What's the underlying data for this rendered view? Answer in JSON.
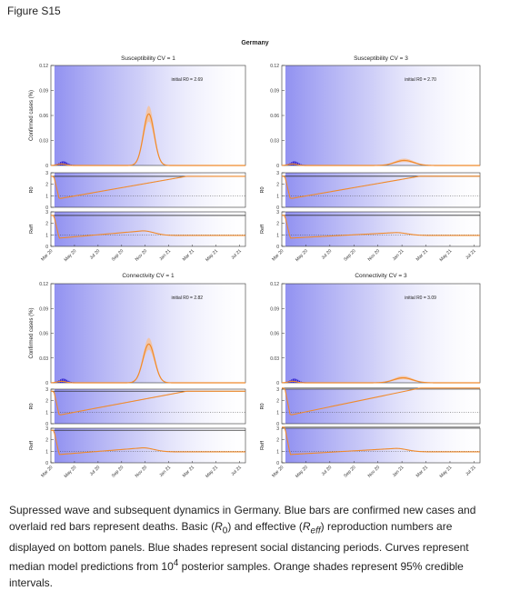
{
  "figure_label": "Figure S15",
  "suptitle": "Germany",
  "caption": {
    "part1": "Supressed wave and subsequent dynamics in Germany. Blue bars are confirmed new cases and overlaid red bars represent deaths. Basic (",
    "r0": "R",
    "r0_sub": "0",
    "part2": ") and effective (",
    "reff": "R",
    "reff_sub": "eff",
    "part3": ") reproduction numbers are displayed on bottom panels. Blue shades represent social distancing periods. Curves represent median model predictions from 10",
    "sup": "4",
    "part4": " posterior samples. Orange shades represent 95% credible intervals."
  },
  "chart_data": [
    {
      "type": "line",
      "title": "Susceptibility CV = 1",
      "annotation": "initial R0 = 2.69",
      "ylabel_cases": "Confirmed cases (%)",
      "ylabel_r0": "R0",
      "ylabel_reff": "Reff",
      "x_ticks": [
        "Mar 20",
        "May 20",
        "Jul 20",
        "Sep 20",
        "Nov 20",
        "Jan 21",
        "Mar 21",
        "May 21",
        "Jul 21"
      ],
      "cases_yticks": [
        "0.12",
        "0.09",
        "0.06",
        "0.03",
        "0"
      ],
      "cases_ylim": [
        0,
        0.12
      ],
      "r_yticks": [
        "3",
        "2",
        "1",
        "0"
      ],
      "r_ylim": [
        0,
        3
      ],
      "peak_month": 8.3,
      "peak_value": 0.062,
      "peak_width": 0.65,
      "ci_frac": 0.15,
      "r0_start": 0.75,
      "r0_end": 2.69,
      "reff_bump": 1.35,
      "reff_bump_month": 7.8
    },
    {
      "type": "line",
      "title": "Susceptibility CV = 3",
      "annotation": "initial R0 = 2.70",
      "ylabel_cases": "",
      "ylabel_r0": "R0",
      "ylabel_reff": "Reff",
      "x_ticks": [
        "Mar 20",
        "May 20",
        "Jul 20",
        "Sep 20",
        "Nov 20",
        "Jan 21",
        "Mar 21",
        "May 21",
        "Jul 21"
      ],
      "cases_yticks": [
        "0.12",
        "0.09",
        "0.06",
        "0.03",
        "0"
      ],
      "cases_ylim": [
        0,
        0.12
      ],
      "r_yticks": [
        "3",
        "2",
        "1",
        "0"
      ],
      "r_ylim": [
        0,
        3
      ],
      "peak_month": 10.2,
      "peak_value": 0.006,
      "peak_width": 1.1,
      "ci_frac": 0.3,
      "r0_start": 0.75,
      "r0_end": 2.7,
      "reff_bump": 1.2,
      "reff_bump_month": 9.5
    },
    {
      "type": "line",
      "title": "Connectivity CV = 1",
      "annotation": "initial R0 = 2.82",
      "ylabel_cases": "Confirmed cases (%)",
      "ylabel_r0": "R0",
      "ylabel_reff": "Reff",
      "x_ticks": [
        "Mar 20",
        "May 20",
        "Jul 20",
        "Sep 20",
        "Nov 20",
        "Jan 21",
        "Mar 21",
        "May 21",
        "Jul 21"
      ],
      "cases_yticks": [
        "0.12",
        "0.09",
        "0.06",
        "0.03",
        "0"
      ],
      "cases_ylim": [
        0,
        0.12
      ],
      "r_yticks": [
        "3",
        "2",
        "1",
        "0"
      ],
      "r_ylim": [
        0,
        3
      ],
      "peak_month": 8.3,
      "peak_value": 0.047,
      "peak_width": 0.7,
      "ci_frac": 0.15,
      "r0_start": 0.75,
      "r0_end": 2.82,
      "reff_bump": 1.3,
      "reff_bump_month": 7.8
    },
    {
      "type": "line",
      "title": "Connectivity CV = 3",
      "annotation": "initial R0 = 3.09",
      "ylabel_cases": "",
      "ylabel_r0": "R0",
      "ylabel_reff": "Reff",
      "x_ticks": [
        "Mar 20",
        "May 20",
        "Jul 20",
        "Sep 20",
        "Nov 20",
        "Jan 21",
        "Mar 21",
        "May 21",
        "Jul 21"
      ],
      "cases_yticks": [
        "0.12",
        "0.09",
        "0.06",
        "0.03",
        "0"
      ],
      "cases_ylim": [
        0,
        0.12
      ],
      "r_yticks": [
        "3",
        "2",
        "1",
        "0"
      ],
      "r_ylim": [
        0,
        3
      ],
      "peak_month": 10.1,
      "peak_value": 0.006,
      "peak_width": 1.1,
      "ci_frac": 0.3,
      "r0_start": 0.75,
      "r0_end": 3.09,
      "reff_bump": 1.25,
      "reff_bump_month": 9.5
    }
  ],
  "colors": {
    "orange": "#f08a2c",
    "orange_band": "#f6c29a",
    "bars": "#2a1ad0",
    "shade": "#8888ee",
    "axis": "#333333"
  }
}
